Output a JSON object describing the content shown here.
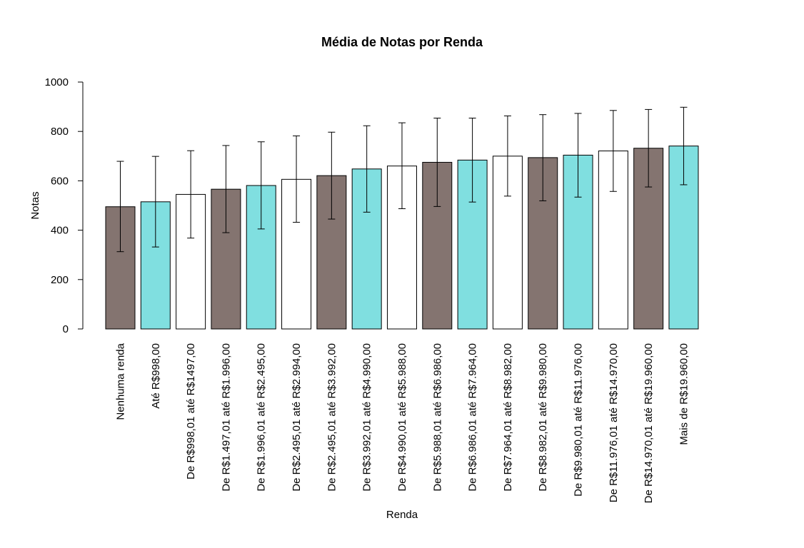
{
  "chart_data": {
    "type": "bar",
    "title": "Média de Notas por Renda",
    "xlabel": "Renda",
    "ylabel": "Notas",
    "ylim": [
      0,
      1000
    ],
    "yticks": [
      0,
      200,
      400,
      600,
      800,
      1000
    ],
    "grid": false,
    "categories": [
      "Nenhuma renda",
      "Até R$998,00",
      "De R$998,01 até R$1497,00",
      "De R$1.497,01 até R$1.996,00",
      "De R$1.996,01 até R$2.495,00",
      "De R$2.495,01 até R$2.994,00",
      "De R$2.495,01 até R$3.992,00",
      "De R$3.992,01 até R$4.990,00",
      "De R$4.990,01 até R$5.988,00",
      "De R$5.988,01 até R$6.986,00",
      "De R$6.986,01 até R$7.964,00",
      "De R$7.964,01 até R$8.982,00",
      "De R$8.982,01 até R$9.980,00",
      "De R$9.980,01 até R$11.976,00",
      "De R$11.976,01 até R$14.970,00",
      "De R$14.970,01 até R$19.960,00",
      "Mais de R$19.960,00"
    ],
    "values": [
      495,
      515,
      545,
      566,
      581,
      606,
      621,
      648,
      660,
      675,
      684,
      700,
      694,
      704,
      721,
      732,
      741
    ],
    "error_low": [
      313,
      332,
      368,
      390,
      405,
      432,
      445,
      473,
      487,
      496,
      514,
      538,
      519,
      534,
      557,
      575,
      584
    ],
    "error_high": [
      679,
      699,
      722,
      743,
      758,
      782,
      797,
      823,
      835,
      854,
      854,
      863,
      868,
      873,
      885,
      889,
      898
    ],
    "bar_colors": [
      "#847470",
      "#80dfe0",
      "#ffffff",
      "#847470",
      "#80dfe0",
      "#ffffff",
      "#847470",
      "#80dfe0",
      "#ffffff",
      "#847470",
      "#80dfe0",
      "#ffffff",
      "#847470",
      "#80dfe0",
      "#ffffff",
      "#847470",
      "#80dfe0"
    ]
  }
}
